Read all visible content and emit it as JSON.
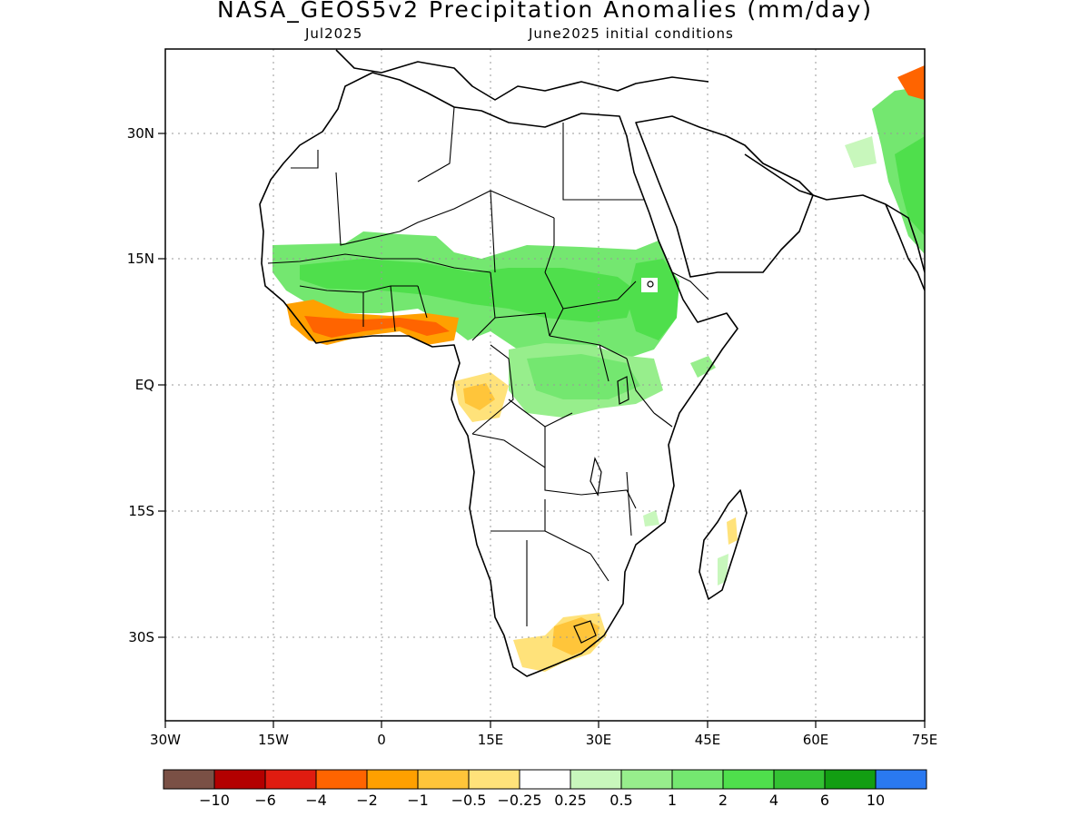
{
  "title": "NASA_GEOS5v2 Precipitation Anomalies (mm/day)",
  "subtitle_left": "Jul2025",
  "subtitle_right": "June2025 initial conditions",
  "map": {
    "lon_range": [
      -30,
      75
    ],
    "lat_range": [
      -40,
      40
    ],
    "lon_ticks": [
      "30W",
      "15W",
      "0",
      "15E",
      "30E",
      "45E",
      "60E",
      "75E"
    ],
    "lat_ticks": [
      "30N",
      "15N",
      "EQ",
      "15S",
      "30S"
    ],
    "grid": true,
    "regions": [
      {
        "name": "sahel-band",
        "category": "wet",
        "level": "1 to 2"
      },
      {
        "name": "ethiopian-highlands",
        "category": "wet",
        "level": "2 to 4"
      },
      {
        "name": "congo-basin",
        "category": "wet",
        "level": "1 to 2"
      },
      {
        "name": "guinea-coast",
        "category": "dry",
        "level": "-4 to -2"
      },
      {
        "name": "gabon-congo-coast",
        "category": "dry",
        "level": "-1 to -0.5"
      },
      {
        "name": "south-africa",
        "category": "dry",
        "level": "-1 to -0.5"
      },
      {
        "name": "india-west-coast",
        "category": "wet",
        "level": "1 to 2"
      },
      {
        "name": "himalaya",
        "category": "dry",
        "level": "-2 to -1"
      }
    ]
  },
  "colorbar": {
    "colors": [
      "#7a5045",
      "#b30000",
      "#e01c10",
      "#ff6400",
      "#ffa000",
      "#ffc53a",
      "#ffe27a",
      "#ffffff",
      "#c8f7bc",
      "#97ee8c",
      "#74e770",
      "#4fdf4c",
      "#33c233",
      "#129e12",
      "#2a79f0"
    ],
    "labels": [
      "−10",
      "−6",
      "−4",
      "−2",
      "−1",
      "−0.5",
      "−0.25",
      "0.25",
      "0.5",
      "1",
      "2",
      "4",
      "6",
      "10"
    ]
  }
}
